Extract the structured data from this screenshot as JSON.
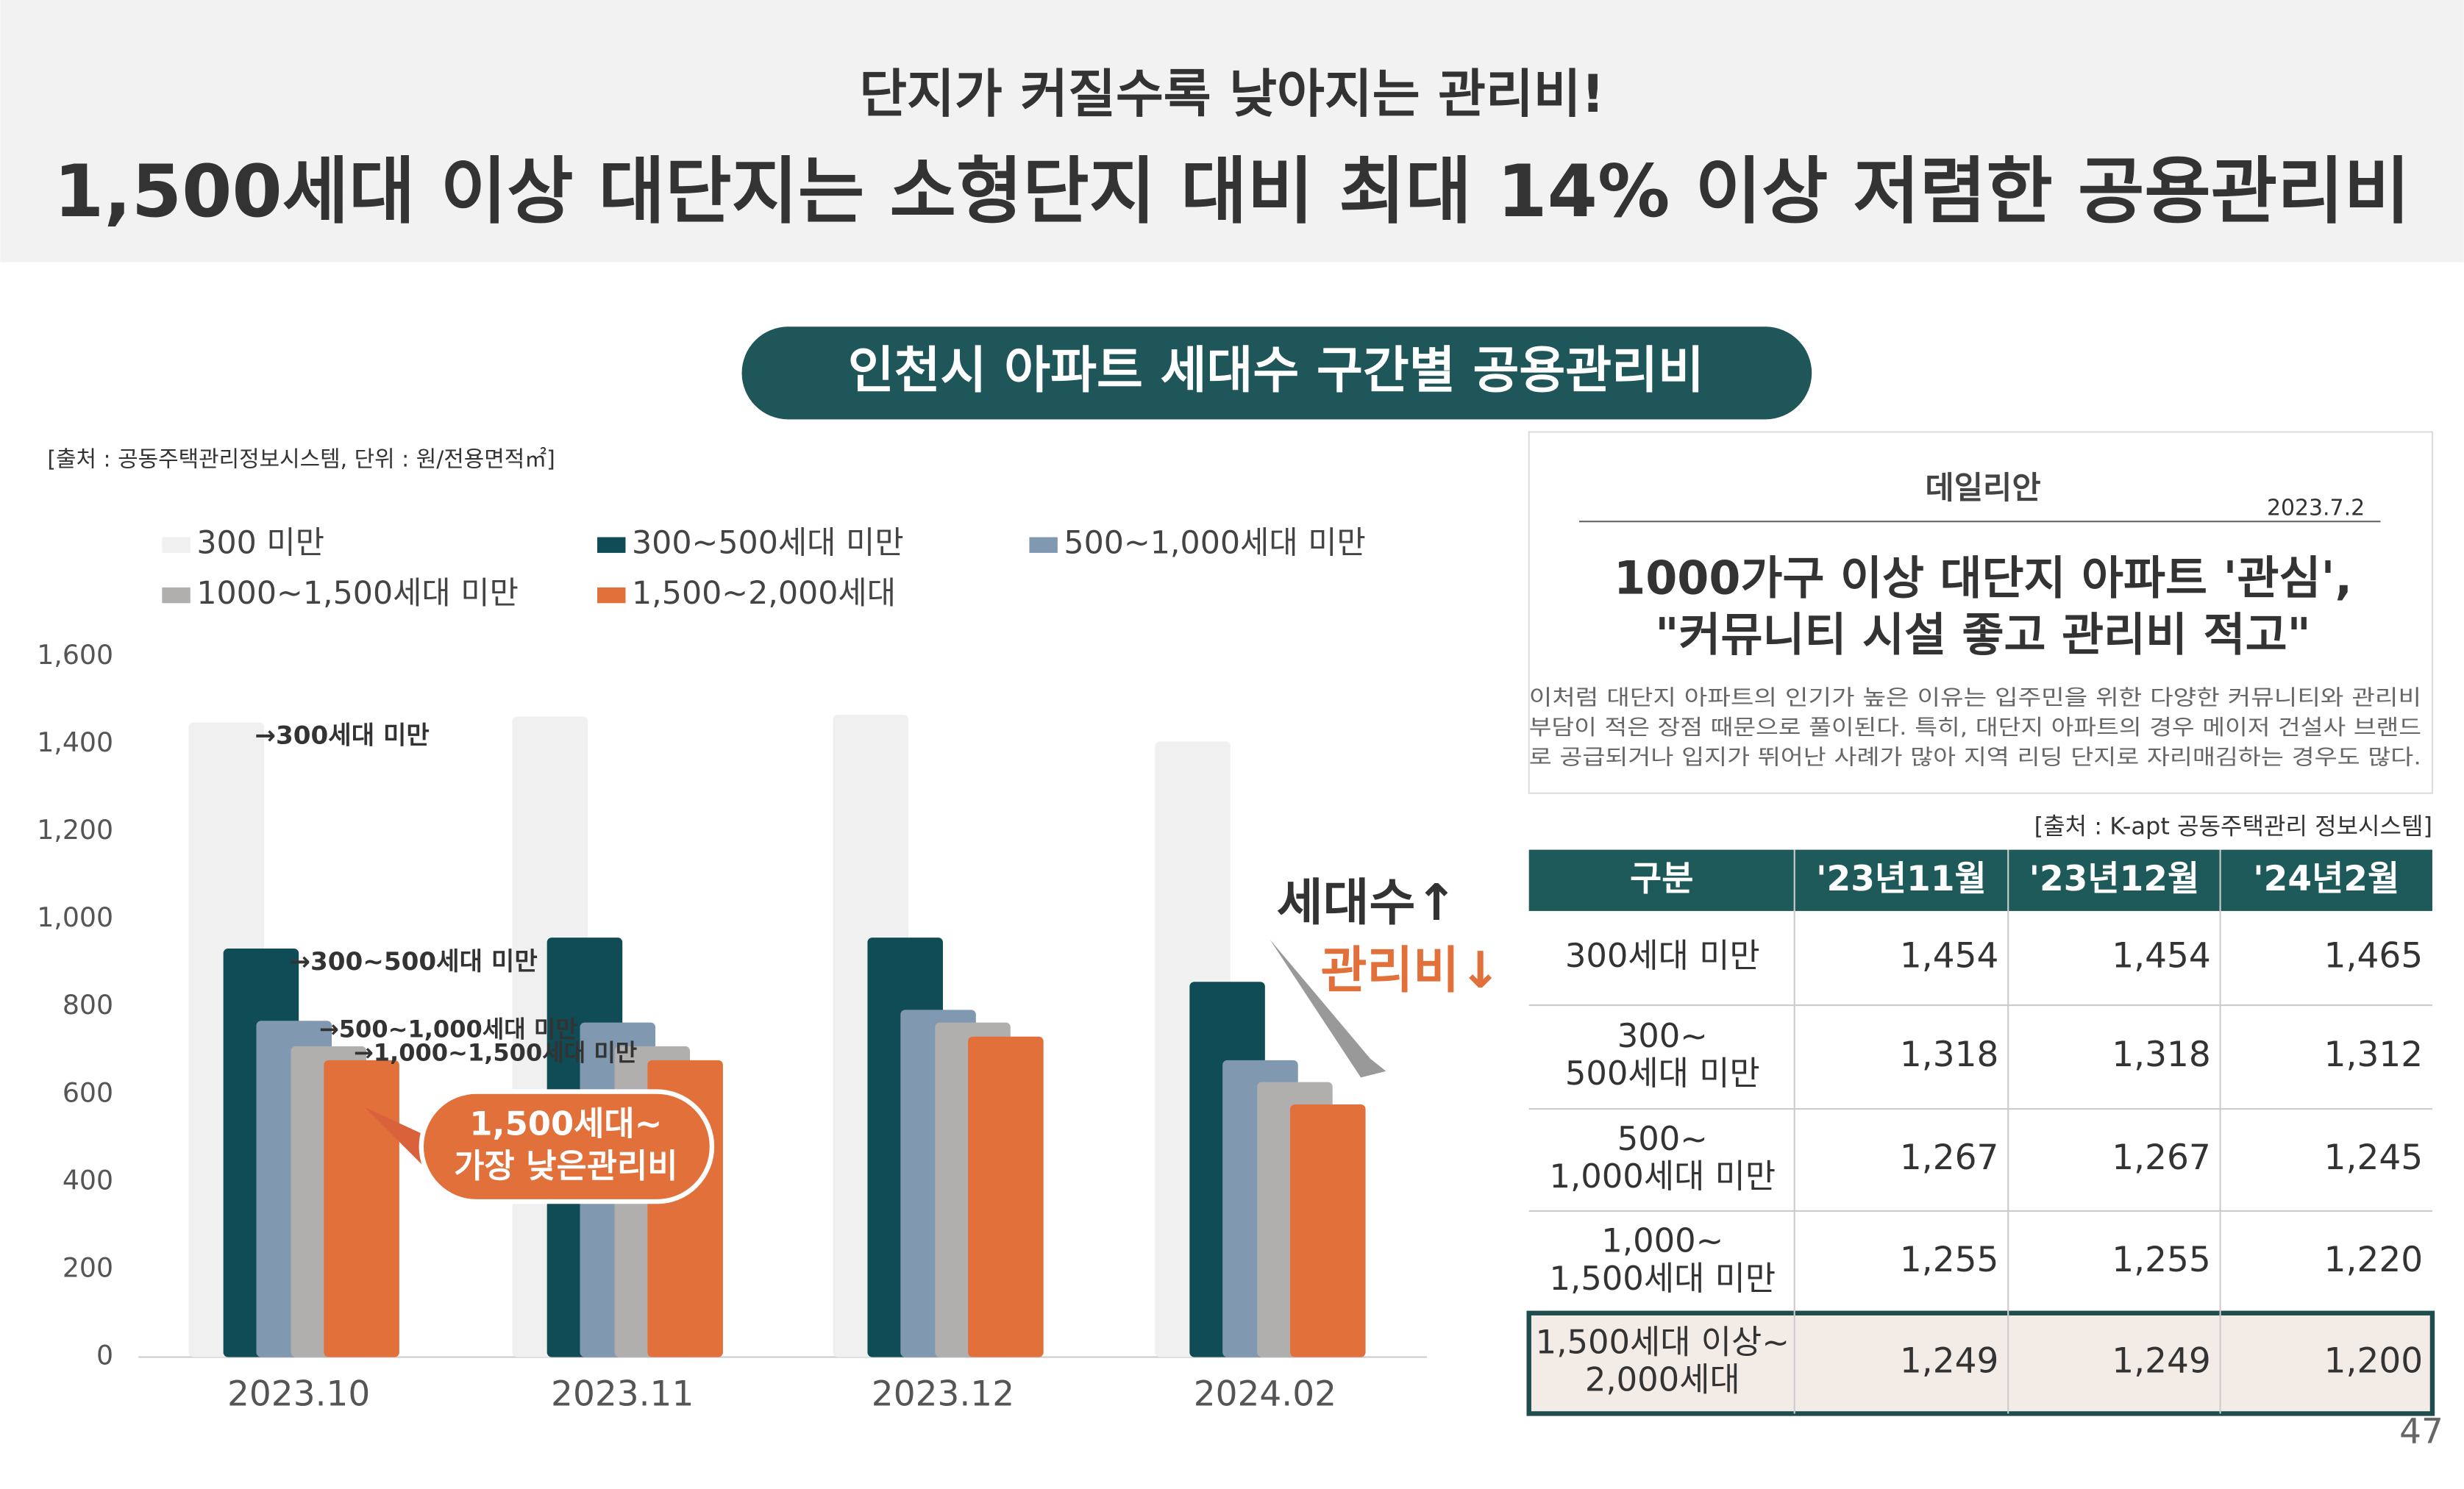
{
  "header": {
    "subtitle": "단지가 커질수록 낮아지는 관리비!",
    "title": "1,500세대 이상 대단지는 소형단지 대비 최대 14% 이상 저렴한 공용관리비"
  },
  "section_title": "인천시 아파트 세대수 구간별 공용관리비",
  "chart_data": {
    "type": "bar",
    "source": "[출처 : 공동주택관리정보시스템, 단위 : 원/전용면적㎡]",
    "categories": [
      "2023.10",
      "2023.11",
      "2023.12",
      "2024.02"
    ],
    "series": [
      {
        "name": "300 미만",
        "color": "#f0f0f0",
        "values": [
          1449,
          1463,
          1467,
          1406
        ]
      },
      {
        "name": "300~500세대 미만",
        "color": "#0f4c55",
        "values": [
          933,
          958,
          958,
          857
        ]
      },
      {
        "name": "500~1,000세대 미만",
        "color": "#8199b0",
        "values": [
          768,
          764,
          793,
          678
        ]
      },
      {
        "name": "1000~1,500세대 미만",
        "color": "#b1aeae",
        "values": [
          710,
          710,
          764,
          628
        ]
      },
      {
        "name": "1,500~2,000세대",
        "color": "#e2703a",
        "values": [
          678,
          678,
          732,
          577
        ]
      }
    ],
    "ylim": [
      0,
      1600
    ],
    "yticks": [
      0,
      200,
      400,
      600,
      800,
      {
        "value": 1000,
        "label": "1,000"
      },
      {
        "value": 1200,
        "label": "1,200"
      },
      {
        "value": 1400,
        "label": "1,400"
      },
      {
        "value": 1600,
        "label": "1,600"
      }
    ],
    "annotations": [
      "→300세대 미만",
      "→300~500세대 미만",
      "→500~1,000세대 미만",
      "→1,000~1,500세대 미만",
      "1,500세대~",
      "가장 낮은관리비",
      "세대수↑",
      "관리비↓"
    ]
  },
  "article": {
    "logo": "데일리안",
    "date": "2023.7.2",
    "headline": [
      "1000가구 이상 대단지 아파트 '관심',",
      "\"커뮤니티 시설 좋고 관리비 적고\""
    ],
    "body": [
      "이처럼 대단지 아파트의 인기가 높은 이유는 입주민을 위한 다양한 커뮤니티와 관리비",
      "부담이 적은 장점 때문으로 풀이된다. 특히, 대단지 아파트의 경우 메이저 건설사 브랜드",
      "로 공급되거나 입지가 뛰어난 사례가 많아 지역 리딩 단지로 자리매김하는 경우도 많다."
    ]
  },
  "table": {
    "source": "[출처 : K-apt 공동주택관리 정보시스템]",
    "header": [
      "구분",
      "'23년11월",
      "'23년12월",
      "'24년2월"
    ],
    "rows": [
      {
        "label": [
          "300세대 미만"
        ],
        "values": [
          "1,454",
          "1,454",
          "1,465"
        ]
      },
      {
        "label": [
          "300~",
          "500세대 미만"
        ],
        "values": [
          "1,318",
          "1,318",
          "1,312"
        ]
      },
      {
        "label": [
          "500~",
          "1,000세대 미만"
        ],
        "values": [
          "1,267",
          "1,267",
          "1,245"
        ]
      },
      {
        "label": [
          "1,000~",
          "1,500세대 미만"
        ],
        "values": [
          "1,255",
          "1,255",
          "1,220"
        ]
      },
      {
        "label": [
          "1,500세대 이상~",
          "2,000세대"
        ],
        "values": [
          "1,249",
          "1,249",
          "1,200"
        ]
      }
    ]
  },
  "page_number": "47"
}
